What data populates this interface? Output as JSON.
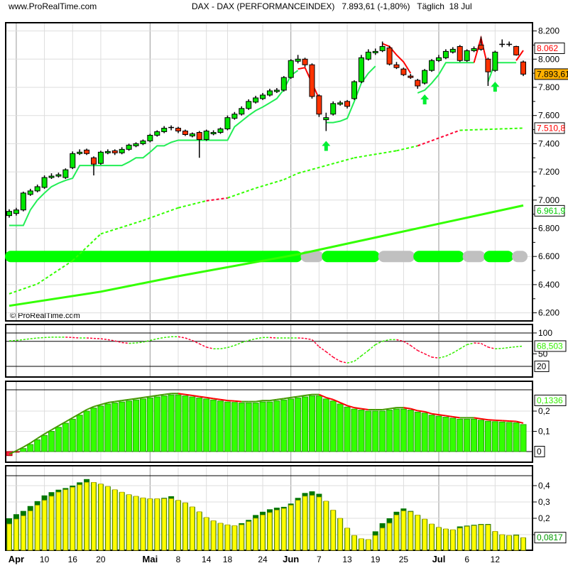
{
  "header": {
    "site": "www.ProRealTime.com",
    "title": "DAX - DAX (PERFORMANCEINDEX)",
    "price": "7.893,61",
    "change": "(-1,80%)",
    "period": "Täglich",
    "date": "18 Jul"
  },
  "watermark": "© ProRealTime.com",
  "colors": {
    "up": "#00e600",
    "down": "#ff3300",
    "stop_long": "#22ee55",
    "stop_short": "#ff0000",
    "ma": "#33ff00",
    "band_on": "#00ff00",
    "band_off": "#c0c0c0",
    "hist_green": "#33ff00",
    "hist_yellow": "#ffff00",
    "hist_dark": "#007700",
    "last_price_bg": "#ffb000"
  },
  "chart_data": [
    {
      "type": "candlestick",
      "name": "price",
      "ylim": [
        6200,
        8200
      ],
      "y_ticks": [
        "8.200",
        "8.000",
        "7.800",
        "7.600",
        "7.400",
        "7.200",
        "7.000",
        "6.800",
        "6.600",
        "6.400",
        "6.200"
      ],
      "y_tick_values": [
        8200,
        8000,
        7800,
        7600,
        7400,
        7200,
        7000,
        6800,
        6600,
        6400,
        6200
      ],
      "x_ticks": [
        {
          "label": "Apr",
          "i": 1,
          "major": true
        },
        {
          "label": "10",
          "i": 5
        },
        {
          "label": "16",
          "i": 9
        },
        {
          "label": "20",
          "i": 13
        },
        {
          "label": "Mai",
          "i": 20,
          "major": true
        },
        {
          "label": "8",
          "i": 24
        },
        {
          "label": "14",
          "i": 28
        },
        {
          "label": "18",
          "i": 31
        },
        {
          "label": "24",
          "i": 36
        },
        {
          "label": "Jun",
          "i": 40,
          "major": true
        },
        {
          "label": "7",
          "i": 44
        },
        {
          "label": "13",
          "i": 48
        },
        {
          "label": "19",
          "i": 52
        },
        {
          "label": "25",
          "i": 56
        },
        {
          "label": "Jul",
          "i": 61,
          "major": true
        },
        {
          "label": "6",
          "i": 65
        },
        {
          "label": "12",
          "i": 69
        }
      ],
      "candles": [
        [
          6890,
          6935,
          6875,
          6920
        ],
        [
          6905,
          6945,
          6890,
          6930
        ],
        [
          6930,
          7060,
          6920,
          7050
        ],
        [
          7040,
          7080,
          7030,
          7065
        ],
        [
          7065,
          7110,
          7055,
          7095
        ],
        [
          7090,
          7175,
          7080,
          7160
        ],
        [
          7160,
          7190,
          7150,
          7170
        ],
        [
          7170,
          7195,
          7160,
          7180
        ],
        [
          7160,
          7225,
          7150,
          7215
        ],
        [
          7230,
          7345,
          7220,
          7330
        ],
        [
          7330,
          7360,
          7320,
          7340
        ],
        [
          7355,
          7365,
          7320,
          7330
        ],
        [
          7300,
          7310,
          7175,
          7255
        ],
        [
          7260,
          7350,
          7250,
          7340
        ],
        [
          7335,
          7360,
          7325,
          7345
        ],
        [
          7350,
          7360,
          7320,
          7335
        ],
        [
          7335,
          7375,
          7325,
          7360
        ],
        [
          7360,
          7400,
          7350,
          7390
        ],
        [
          7385,
          7410,
          7375,
          7400
        ],
        [
          7400,
          7430,
          7390,
          7420
        ],
        [
          7420,
          7470,
          7410,
          7460
        ],
        [
          7460,
          7495,
          7450,
          7485
        ],
        [
          7485,
          7525,
          7475,
          7510
        ],
        [
          7510,
          7530,
          7495,
          7515
        ],
        [
          7510,
          7520,
          7475,
          7490
        ],
        [
          7490,
          7500,
          7455,
          7465
        ],
        [
          7455,
          7480,
          7445,
          7470
        ],
        [
          7480,
          7490,
          7300,
          7430
        ],
        [
          7430,
          7500,
          7420,
          7490
        ],
        [
          7470,
          7495,
          7460,
          7480
        ],
        [
          7480,
          7515,
          7470,
          7505
        ],
        [
          7505,
          7600,
          7495,
          7585
        ],
        [
          7580,
          7625,
          7570,
          7610
        ],
        [
          7610,
          7665,
          7600,
          7650
        ],
        [
          7650,
          7715,
          7640,
          7700
        ],
        [
          7695,
          7740,
          7685,
          7725
        ],
        [
          7720,
          7760,
          7710,
          7745
        ],
        [
          7745,
          7790,
          7735,
          7775
        ],
        [
          7770,
          7795,
          7760,
          7780
        ],
        [
          7780,
          7880,
          7770,
          7870
        ],
        [
          7870,
          8000,
          7860,
          7990
        ],
        [
          7985,
          8030,
          7970,
          8000
        ],
        [
          8000,
          8010,
          7945,
          7960
        ],
        [
          7960,
          7970,
          7720,
          7735
        ],
        [
          7740,
          7750,
          7590,
          7610
        ],
        [
          7570,
          7620,
          7490,
          7585
        ],
        [
          7610,
          7700,
          7600,
          7685
        ],
        [
          7680,
          7705,
          7670,
          7690
        ],
        [
          7700,
          7710,
          7650,
          7665
        ],
        [
          7720,
          7850,
          7710,
          7840
        ],
        [
          7840,
          8030,
          7830,
          8010
        ],
        [
          8000,
          8070,
          7990,
          8050
        ],
        [
          8045,
          8075,
          8030,
          8055
        ],
        [
          8060,
          8125,
          8050,
          8090
        ],
        [
          8080,
          8095,
          7955,
          7965
        ],
        [
          7960,
          7980,
          7930,
          7940
        ],
        [
          7930,
          7940,
          7880,
          7890
        ],
        [
          7880,
          7895,
          7860,
          7870
        ],
        [
          7850,
          7860,
          7790,
          7810
        ],
        [
          7830,
          7930,
          7820,
          7920
        ],
        [
          7920,
          8000,
          7910,
          7990
        ],
        [
          7990,
          8030,
          7980,
          8010
        ],
        [
          8010,
          8070,
          8000,
          8055
        ],
        [
          8050,
          8085,
          8040,
          8070
        ],
        [
          8090,
          8100,
          7980,
          7990
        ],
        [
          7990,
          8070,
          7980,
          8060
        ],
        [
          8060,
          8090,
          8050,
          8075
        ],
        [
          8100,
          8160,
          8060,
          8070
        ],
        [
          8000,
          8010,
          7810,
          7910
        ],
        [
          7920,
          8060,
          7910,
          8050
        ],
        [
          8100,
          8140,
          8085,
          8105
        ],
        [
          8105,
          8125,
          8090,
          8105
        ],
        [
          8090,
          8095,
          8025,
          8030
        ],
        [
          7980,
          7990,
          7880,
          7893.61
        ]
      ],
      "stop_long": [
        6820,
        6820,
        6820,
        6930,
        7000,
        7050,
        7095,
        7120,
        7140,
        7155,
        7245,
        7245,
        7245,
        7245,
        7245,
        7245,
        7245,
        7270,
        7300,
        7300,
        7340,
        7385,
        7385,
        7410,
        7425,
        7425,
        7425,
        7425,
        7425,
        7425,
        7425,
        7425,
        7520,
        7560,
        7600,
        7635,
        7660,
        7690,
        7720,
        7785,
        7885,
        7920,
        null,
        null,
        null,
        7550,
        7550,
        7560,
        7580,
        7700,
        7830,
        7900,
        7950,
        null,
        null,
        null,
        null,
        null,
        7760,
        7780,
        7830,
        7890,
        7975,
        7975,
        7975,
        7975,
        7975,
        null,
        7840,
        7975,
        7975,
        7975,
        7975,
        null
      ],
      "stop_short": [
        null,
        null,
        null,
        null,
        null,
        null,
        null,
        null,
        null,
        null,
        null,
        null,
        null,
        null,
        null,
        null,
        null,
        null,
        null,
        null,
        null,
        null,
        null,
        null,
        null,
        null,
        null,
        null,
        null,
        null,
        null,
        null,
        null,
        null,
        null,
        null,
        null,
        null,
        null,
        null,
        null,
        7930,
        7940,
        7830,
        7720,
        null,
        null,
        null,
        null,
        null,
        null,
        null,
        null,
        8110,
        8090,
        8030,
        7980,
        7900,
        null,
        null,
        null,
        null,
        null,
        null,
        null,
        null,
        7975,
        8150,
        7940,
        null,
        null,
        null,
        7990,
        8062
      ],
      "ma_dotted": [
        [
          0,
          6335
        ],
        [
          4,
          6405
        ],
        [
          9,
          6570
        ],
        [
          13,
          6760
        ],
        [
          19,
          6855
        ],
        [
          24,
          6945
        ],
        [
          28,
          6995
        ],
        [
          31,
          7015
        ],
        [
          35,
          7085
        ],
        [
          39,
          7145
        ],
        [
          41,
          7190
        ],
        [
          49,
          7300
        ],
        [
          55,
          7350
        ],
        [
          58,
          7385
        ],
        [
          64,
          7495
        ],
        [
          73,
          7510.8
        ]
      ],
      "ma_solid": [
        [
          0,
          6250
        ],
        [
          13,
          6350
        ],
        [
          24,
          6460
        ],
        [
          41,
          6615
        ],
        [
          73,
          6961.9
        ]
      ],
      "band_level": 6600,
      "band_segments": [
        {
          "from": 0,
          "to": 41,
          "state": "on"
        },
        {
          "from": 42,
          "to": 44,
          "state": "off"
        },
        {
          "from": 45,
          "to": 52,
          "state": "on"
        },
        {
          "from": 53,
          "to": 57,
          "state": "off"
        },
        {
          "from": 58,
          "to": 64,
          "state": "on"
        },
        {
          "from": 65,
          "to": 67,
          "state": "off"
        },
        {
          "from": 68,
          "to": 71,
          "state": "on"
        },
        {
          "from": 72,
          "to": 73,
          "state": "off"
        }
      ],
      "buy_arrows": [
        45,
        59,
        69
      ],
      "value_labels": [
        {
          "text": "8.062",
          "value": 8062,
          "style": "red"
        },
        {
          "text": "7.893,61",
          "value": 7893.61,
          "style": "last"
        },
        {
          "text": "7.510,8",
          "value": 7510.8,
          "style": "red"
        },
        {
          "text": "6.961,9",
          "value": 6961.9,
          "style": "green"
        }
      ]
    },
    {
      "type": "line",
      "name": "oscillator",
      "ylim": [
        0,
        100
      ],
      "y_ticks": [
        "100",
        "50"
      ],
      "y_tick_values": [
        100,
        50
      ],
      "levels": [
        100,
        80,
        20
      ],
      "level_label": "20",
      "last_label": "68,503",
      "values": [
        81,
        82,
        84,
        86,
        88,
        89,
        90,
        90,
        90,
        89,
        88,
        88,
        87,
        86,
        84,
        81,
        77,
        75,
        76,
        78,
        82,
        86,
        89,
        91,
        91,
        88,
        82,
        74,
        66,
        62,
        62,
        65,
        70,
        77,
        82,
        86,
        89,
        89,
        88,
        88,
        88,
        88,
        87,
        84,
        67,
        55,
        42,
        32,
        28,
        32,
        45,
        58,
        72,
        80,
        84,
        84,
        80,
        70,
        58,
        50,
        42,
        40,
        44,
        52,
        62,
        72,
        76,
        75,
        66,
        62,
        63,
        65,
        67,
        68.503
      ]
    },
    {
      "type": "bar",
      "name": "histogram-green",
      "y_ticks": [
        "0,2",
        "0,1"
      ],
      "y_tick_values": [
        0.2,
        0.1
      ],
      "zero_label": "0",
      "last_label": "0,1336",
      "values": [
        -0.02,
        -0.003,
        0.015,
        0.035,
        0.058,
        0.08,
        0.1,
        0.12,
        0.14,
        0.16,
        0.18,
        0.2,
        0.215,
        0.225,
        0.235,
        0.24,
        0.245,
        0.25,
        0.255,
        0.26,
        0.265,
        0.27,
        0.275,
        0.28,
        0.28,
        0.275,
        0.27,
        0.265,
        0.26,
        0.255,
        0.25,
        0.245,
        0.243,
        0.24,
        0.24,
        0.24,
        0.245,
        0.245,
        0.25,
        0.255,
        0.26,
        0.265,
        0.27,
        0.275,
        0.275,
        0.26,
        0.25,
        0.235,
        0.22,
        0.21,
        0.205,
        0.2,
        0.2,
        0.2,
        0.205,
        0.21,
        0.21,
        0.205,
        0.195,
        0.19,
        0.18,
        0.175,
        0.17,
        0.165,
        0.16,
        0.16,
        0.16,
        0.155,
        0.15,
        0.148,
        0.146,
        0.144,
        0.142,
        0.1336
      ]
    },
    {
      "type": "bar",
      "name": "histogram-yellow",
      "y_ticks": [
        "0,4",
        "0,3",
        "0,2"
      ],
      "y_tick_values": [
        0.4,
        0.3,
        0.2
      ],
      "last_label": "0,0817",
      "values": [
        0.165,
        0.195,
        0.215,
        0.245,
        0.28,
        0.31,
        0.335,
        0.36,
        0.375,
        0.39,
        0.405,
        0.42,
        0.42,
        0.41,
        0.395,
        0.375,
        0.36,
        0.345,
        0.335,
        0.325,
        0.32,
        0.32,
        0.32,
        0.32,
        0.31,
        0.295,
        0.27,
        0.24,
        0.205,
        0.185,
        0.17,
        0.16,
        0.155,
        0.16,
        0.18,
        0.2,
        0.22,
        0.235,
        0.25,
        0.26,
        0.28,
        0.31,
        0.335,
        0.34,
        0.33,
        0.305,
        0.25,
        0.2,
        0.14,
        0.095,
        0.075,
        0.07,
        0.095,
        0.14,
        0.17,
        0.22,
        0.245,
        0.24,
        0.22,
        0.195,
        0.165,
        0.145,
        0.135,
        0.13,
        0.14,
        0.15,
        0.155,
        0.16,
        0.16,
        0.12,
        0.1,
        0.095,
        0.095,
        0.0817
      ],
      "highs": [
        0.2,
        0.225,
        0.245,
        0.275,
        0.305,
        0.34,
        0.36,
        0.375,
        0.385,
        0.4,
        0.42,
        0.44,
        0.42,
        0.41,
        0.395,
        0.375,
        0.36,
        0.345,
        0.335,
        0.325,
        0.32,
        0.32,
        0.325,
        0.335,
        0.31,
        0.295,
        0.27,
        0.24,
        0.205,
        0.185,
        0.17,
        0.16,
        0.155,
        0.17,
        0.19,
        0.22,
        0.24,
        0.255,
        0.265,
        0.27,
        0.29,
        0.325,
        0.355,
        0.365,
        0.35,
        0.305,
        0.25,
        0.2,
        0.14,
        0.095,
        0.075,
        0.07,
        0.12,
        0.17,
        0.2,
        0.24,
        0.26,
        0.245,
        0.22,
        0.195,
        0.165,
        0.145,
        0.135,
        0.13,
        0.15,
        0.155,
        0.16,
        0.165,
        0.165,
        0.12,
        0.1,
        0.095,
        0.1,
        0.0817
      ]
    }
  ]
}
